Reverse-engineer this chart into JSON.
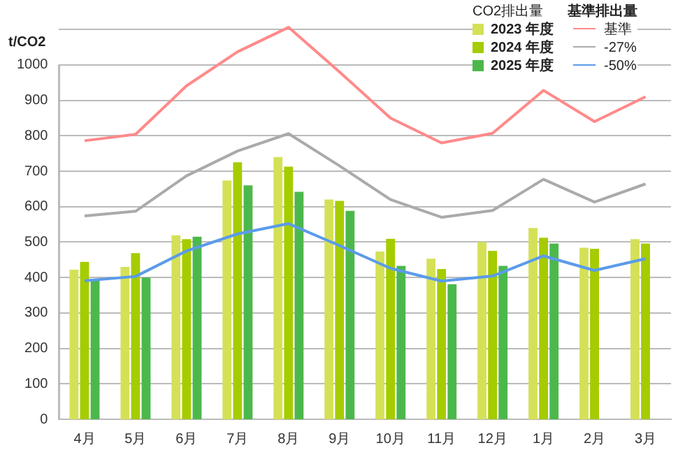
{
  "chart_data": {
    "type": "bar",
    "ylabel": "t/CO2",
    "legend_title": "CO2排出量",
    "annotations": [
      "基準排出量"
    ],
    "categories": [
      "4月",
      "5月",
      "6月",
      "7月",
      "8月",
      "9月",
      "10月",
      "11月",
      "12月",
      "1月",
      "2月",
      "3月"
    ],
    "series": [
      {
        "name": "2023 年度",
        "color": "#d4e157",
        "values": [
          422,
          430,
          519,
          674,
          740,
          620,
          473,
          453,
          500,
          540,
          484,
          508
        ]
      },
      {
        "name": "2024 年度",
        "color": "#a5cc00",
        "values": [
          444,
          469,
          508,
          725,
          713,
          616,
          509,
          424,
          475,
          512,
          481,
          496
        ]
      },
      {
        "name": "2025 年度",
        "color": "#4cb84c",
        "values": [
          395,
          400,
          515,
          660,
          642,
          588,
          433,
          381,
          433,
          496,
          null,
          null
        ]
      },
      {
        "name": "基準",
        "type": "line",
        "color": "#ff8a8a",
        "values": [
          786,
          804,
          941,
          1037,
          1106,
          980,
          850,
          780,
          807,
          928,
          840,
          910
        ]
      },
      {
        "name": "-27%",
        "type": "line",
        "color": "#aaaaaa",
        "values": [
          574,
          587,
          687,
          757,
          806,
          715,
          620,
          570,
          589,
          677,
          613,
          664
        ]
      },
      {
        "name": "-50%",
        "type": "line",
        "color": "#5b9bea",
        "values": [
          391,
          403,
          475,
          523,
          552,
          490,
          426,
          390,
          404,
          461,
          420,
          453
        ]
      }
    ],
    "ylim": [
      0,
      1120
    ],
    "yticks": [
      0,
      100,
      200,
      300,
      400,
      500,
      600,
      700,
      800,
      900,
      1000,
      {
        "value": 1100,
        "label": null
      }
    ],
    "grid": "y",
    "legend": "top right",
    "marker": "none"
  }
}
